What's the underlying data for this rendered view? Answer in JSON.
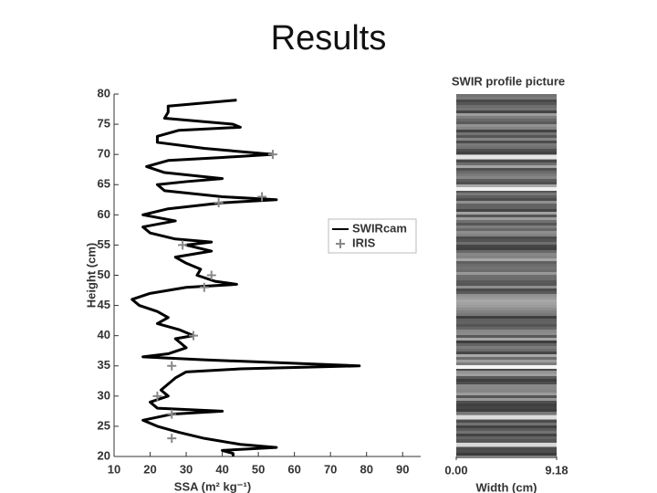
{
  "title": "Results",
  "chart_data": [
    {
      "type": "profile",
      "xlabel": "SSA (m² kg⁻¹)",
      "ylabel": "Height (cm)",
      "xlim": [
        10,
        95
      ],
      "ylim": [
        20,
        80
      ],
      "xticks": [
        10,
        20,
        30,
        40,
        50,
        60,
        70,
        80,
        90
      ],
      "yticks": [
        20,
        25,
        30,
        35,
        40,
        45,
        50,
        55,
        60,
        65,
        70,
        75,
        80
      ],
      "legend": "upper right",
      "series": [
        {
          "name": "SWIRcam",
          "color": "#000000",
          "marker": "line",
          "y": [
            79,
            78,
            77,
            76,
            75,
            74.5,
            74,
            73,
            72,
            71,
            70,
            69.5,
            69,
            68,
            67,
            66,
            65.5,
            65,
            64,
            63,
            62.5,
            62,
            61,
            60,
            59,
            58,
            57,
            56,
            55.5,
            55,
            54,
            53,
            52,
            51,
            50,
            49,
            48.5,
            48,
            47,
            46,
            45,
            44,
            43,
            42,
            41,
            40,
            39.5,
            39,
            38,
            37,
            36.5,
            36,
            35,
            34.5,
            34,
            33,
            32,
            31,
            30,
            29,
            28,
            27.5,
            27,
            26,
            25,
            24,
            23,
            22,
            21.5,
            21,
            20.5,
            20
          ],
          "x": [
            44,
            25,
            25,
            24,
            43,
            45,
            28,
            22,
            22,
            35,
            54,
            40,
            25,
            19,
            24,
            40,
            30,
            22,
            24,
            40,
            55,
            40,
            25,
            18,
            27,
            18,
            20,
            27,
            37,
            30,
            37,
            27,
            30,
            34,
            33,
            38,
            44,
            30,
            20,
            15,
            17,
            22,
            25,
            22,
            28,
            32,
            27,
            28,
            30,
            25,
            18,
            35,
            78,
            45,
            30,
            27,
            25,
            23,
            25,
            20,
            22,
            40,
            26,
            18,
            22,
            28,
            35,
            45,
            55,
            40,
            43,
            43
          ]
        },
        {
          "name": "IRIS",
          "color": "#888888",
          "marker": "cross",
          "y": [
            70,
            63,
            62,
            55,
            50,
            48,
            40,
            35,
            30,
            27,
            23
          ],
          "x": [
            54,
            51,
            39,
            29,
            37,
            35,
            32,
            26,
            22,
            26,
            26
          ]
        }
      ]
    },
    {
      "type": "image",
      "title": "SWIR profile picture",
      "xlabel": "Width (cm)",
      "xlim": [
        0,
        9.18
      ],
      "xticks": [
        {
          "value": 0,
          "label": "0.00"
        },
        {
          "value": 9.18,
          "label": "9.18"
        }
      ]
    }
  ]
}
